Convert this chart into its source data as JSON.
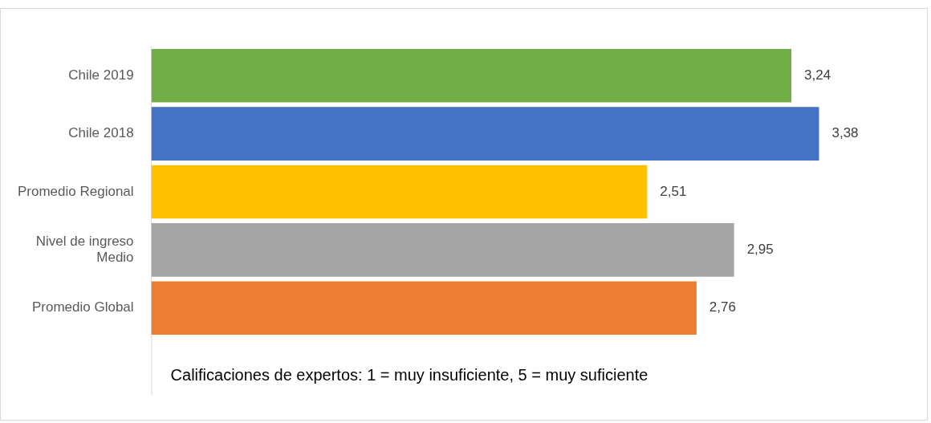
{
  "chart_data": {
    "type": "bar",
    "orientation": "horizontal",
    "categories": [
      "Chile 2019",
      "Chile 2018",
      "Promedio Regional",
      "Nivel de ingreso Medio",
      "Promedio Global"
    ],
    "values": [
      3.24,
      3.38,
      2.51,
      2.95,
      2.76
    ],
    "colors": [
      "#70ad47",
      "#4472c4",
      "#ffc000",
      "#a5a5a5",
      "#ed7d31"
    ],
    "value_labels": [
      "3,24",
      "3,38",
      "2,51",
      "2,95",
      "2,76"
    ],
    "tick_labels": "y",
    "legend": false,
    "annotations": [
      "Calificaciones de expertos: 1 = muy insuficiente, 5 = muy suficiente"
    ]
  }
}
